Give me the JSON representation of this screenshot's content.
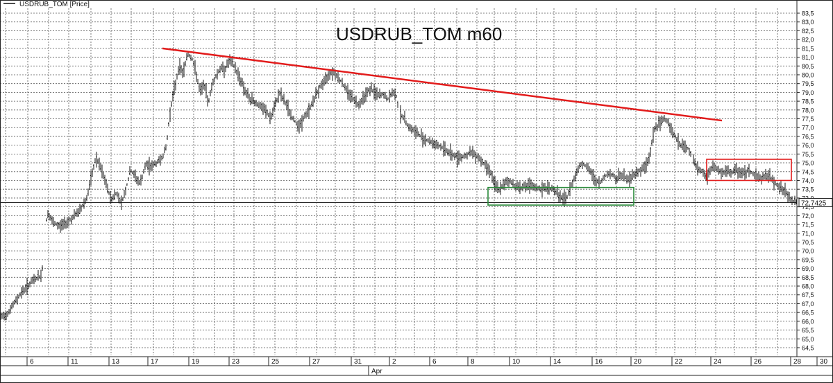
{
  "legend": {
    "label": "USDRUB_TOM [Price]"
  },
  "chart_data": {
    "type": "bar",
    "title": "USDRUB_TOM m60",
    "series_name": "USDRUB_TOM [Price]",
    "ylim": [
      64.5,
      83.5
    ],
    "y_ticks": [
      83.5,
      83.0,
      82.5,
      82.0,
      81.5,
      81.0,
      80.5,
      80.0,
      79.5,
      79.0,
      78.5,
      78.0,
      77.5,
      77.0,
      76.5,
      76.0,
      75.5,
      75.0,
      74.5,
      74.0,
      73.5,
      73.0,
      72.5,
      72.0,
      71.5,
      71.0,
      70.5,
      70.0,
      69.5,
      69.0,
      68.5,
      68.0,
      67.5,
      67.0,
      66.5,
      66.0,
      65.5,
      65.0,
      64.5
    ],
    "y_tick_labels": [
      "83,5",
      "83,0",
      "82,5",
      "82,0",
      "81,5",
      "81,0",
      "80,5",
      "80,0",
      "79,5",
      "79,0",
      "78,5",
      "78,0",
      "77,5",
      "77,0",
      "76,5",
      "76,0",
      "75,5",
      "75,0",
      "74,5",
      "74,0",
      "73,5",
      "73,0",
      "72,5",
      "72,0",
      "71,5",
      "71,0",
      "70,5",
      "70,0",
      "69,5",
      "69,0",
      "68,5",
      "68,0",
      "67,5",
      "67,0",
      "66,5",
      "66,0",
      "65,5",
      "65,0",
      "64,5"
    ],
    "x_tick_labels": [
      "6",
      "11",
      "13",
      "17",
      "19",
      "23",
      "25",
      "27",
      "31",
      "2",
      "6",
      "8",
      "10",
      "14",
      "16",
      "20",
      "22",
      "24",
      "26",
      "28",
      "30"
    ],
    "x_month_label": "Apr",
    "last_price": 72.7425,
    "last_price_label": "72,7425",
    "price_path": [
      [
        0,
        66.2
      ],
      [
        10,
        66.4
      ],
      [
        20,
        67.0
      ],
      [
        30,
        67.6
      ],
      [
        40,
        68.0
      ],
      [
        50,
        68.4
      ],
      [
        60,
        68.6
      ],
      [
        68,
        72.2
      ],
      [
        76,
        71.6
      ],
      [
        85,
        71.4
      ],
      [
        95,
        71.6
      ],
      [
        105,
        71.9
      ],
      [
        115,
        72.3
      ],
      [
        125,
        73.0
      ],
      [
        132,
        74.2
      ],
      [
        138,
        75.3
      ],
      [
        145,
        74.7
      ],
      [
        152,
        73.9
      ],
      [
        160,
        72.9
      ],
      [
        168,
        73.3
      ],
      [
        175,
        72.7
      ],
      [
        182,
        73.6
      ],
      [
        188,
        74.6
      ],
      [
        195,
        74.2
      ],
      [
        202,
        73.8
      ],
      [
        210,
        74.9
      ],
      [
        218,
        74.8
      ],
      [
        226,
        75.0
      ],
      [
        235,
        75.4
      ],
      [
        240,
        76.0
      ],
      [
        244,
        77.6
      ],
      [
        248,
        78.6
      ],
      [
        252,
        79.3
      ],
      [
        258,
        80.5
      ],
      [
        264,
        80.1
      ],
      [
        270,
        81.2
      ],
      [
        276,
        81.0
      ],
      [
        282,
        80.2
      ],
      [
        288,
        79.0
      ],
      [
        294,
        79.5
      ],
      [
        300,
        78.4
      ],
      [
        306,
        79.5
      ],
      [
        312,
        80.0
      ],
      [
        318,
        80.4
      ],
      [
        324,
        80.3
      ],
      [
        330,
        80.8
      ],
      [
        336,
        80.6
      ],
      [
        342,
        80.1
      ],
      [
        348,
        79.6
      ],
      [
        354,
        79.0
      ],
      [
        360,
        78.6
      ],
      [
        366,
        78.5
      ],
      [
        372,
        78.3
      ],
      [
        378,
        78.1
      ],
      [
        384,
        77.9
      ],
      [
        390,
        77.5
      ],
      [
        396,
        78.2
      ],
      [
        402,
        79.0
      ],
      [
        408,
        78.6
      ],
      [
        414,
        78.2
      ],
      [
        420,
        77.6
      ],
      [
        426,
        77.3
      ],
      [
        432,
        77.1
      ],
      [
        438,
        77.6
      ],
      [
        444,
        77.9
      ],
      [
        450,
        78.4
      ],
      [
        456,
        78.9
      ],
      [
        462,
        79.4
      ],
      [
        468,
        79.6
      ],
      [
        474,
        80.1
      ],
      [
        480,
        80.2
      ],
      [
        486,
        79.9
      ],
      [
        492,
        79.6
      ],
      [
        498,
        79.2
      ],
      [
        504,
        78.9
      ],
      [
        510,
        78.6
      ],
      [
        516,
        78.3
      ],
      [
        522,
        78.6
      ],
      [
        528,
        79.0
      ],
      [
        534,
        79.2
      ],
      [
        540,
        79.0
      ],
      [
        546,
        78.8
      ],
      [
        552,
        78.9
      ],
      [
        558,
        78.6
      ],
      [
        564,
        78.9
      ],
      [
        570,
        79.0
      ],
      [
        575,
        77.9
      ],
      [
        582,
        77.5
      ],
      [
        590,
        77.0
      ],
      [
        600,
        76.7
      ],
      [
        610,
        76.4
      ],
      [
        620,
        76.2
      ],
      [
        630,
        76.0
      ],
      [
        640,
        75.8
      ],
      [
        650,
        75.5
      ],
      [
        660,
        75.3
      ],
      [
        670,
        75.4
      ],
      [
        680,
        75.6
      ],
      [
        690,
        75.3
      ],
      [
        700,
        74.8
      ],
      [
        706,
        74.6
      ],
      [
        712,
        73.8
      ],
      [
        718,
        73.5
      ],
      [
        724,
        73.6
      ],
      [
        730,
        74.0
      ],
      [
        736,
        73.9
      ],
      [
        742,
        73.7
      ],
      [
        750,
        73.6
      ],
      [
        760,
        73.7
      ],
      [
        770,
        73.6
      ],
      [
        780,
        73.5
      ],
      [
        790,
        73.6
      ],
      [
        800,
        73.4
      ],
      [
        808,
        73.0
      ],
      [
        815,
        72.9
      ],
      [
        822,
        73.6
      ],
      [
        828,
        74.2
      ],
      [
        834,
        74.8
      ],
      [
        840,
        75.0
      ],
      [
        846,
        74.7
      ],
      [
        852,
        74.4
      ],
      [
        858,
        74.0
      ],
      [
        864,
        73.8
      ],
      [
        870,
        74.2
      ],
      [
        876,
        74.4
      ],
      [
        882,
        74.3
      ],
      [
        888,
        74.1
      ],
      [
        894,
        74.3
      ],
      [
        900,
        74.2
      ],
      [
        906,
        74.0
      ],
      [
        912,
        74.3
      ],
      [
        918,
        74.5
      ],
      [
        924,
        74.6
      ],
      [
        930,
        74.8
      ],
      [
        936,
        75.4
      ],
      [
        940,
        76.4
      ],
      [
        944,
        77.0
      ],
      [
        950,
        77.2
      ],
      [
        956,
        77.5
      ],
      [
        962,
        77.4
      ],
      [
        968,
        76.8
      ],
      [
        974,
        76.4
      ],
      [
        980,
        76.0
      ],
      [
        986,
        75.9
      ],
      [
        992,
        75.8
      ],
      [
        1000,
        75.0
      ],
      [
        1006,
        74.6
      ],
      [
        1012,
        74.5
      ],
      [
        1018,
        74.2
      ],
      [
        1024,
        74.6
      ],
      [
        1030,
        74.8
      ],
      [
        1036,
        74.5
      ],
      [
        1042,
        74.4
      ],
      [
        1048,
        74.5
      ],
      [
        1054,
        74.4
      ],
      [
        1060,
        74.6
      ],
      [
        1066,
        74.5
      ],
      [
        1072,
        74.4
      ],
      [
        1078,
        74.6
      ],
      [
        1084,
        74.4
      ],
      [
        1090,
        74.2
      ],
      [
        1096,
        74.1
      ],
      [
        1102,
        74.3
      ],
      [
        1108,
        74.2
      ],
      [
        1114,
        74.0
      ],
      [
        1120,
        73.7
      ],
      [
        1126,
        73.5
      ],
      [
        1132,
        73.3
      ],
      [
        1138,
        73.0
      ],
      [
        1144,
        72.8
      ],
      [
        1148,
        72.74
      ]
    ],
    "annotations": [
      {
        "type": "trendline",
        "color": "#e21b1b",
        "from": {
          "x": 234,
          "price": 81.5
        },
        "to": {
          "x": 1040,
          "price": 77.4
        }
      },
      {
        "type": "rectangle",
        "color": "#2a8a3a",
        "x0": 703,
        "x1": 913,
        "price_top": 73.6,
        "price_bottom": 72.6
      },
      {
        "type": "rectangle",
        "color": "#e21b1b",
        "x0": 1018,
        "x1": 1140,
        "price_top": 75.2,
        "price_bottom": 74.0
      }
    ],
    "grid": true,
    "legend_position": "top-left",
    "colors": {
      "bars": "#111111",
      "grid": "#555555",
      "trend": "#e21b1b",
      "support_box": "#2a8a3a",
      "range_box": "#e21b1b"
    }
  }
}
